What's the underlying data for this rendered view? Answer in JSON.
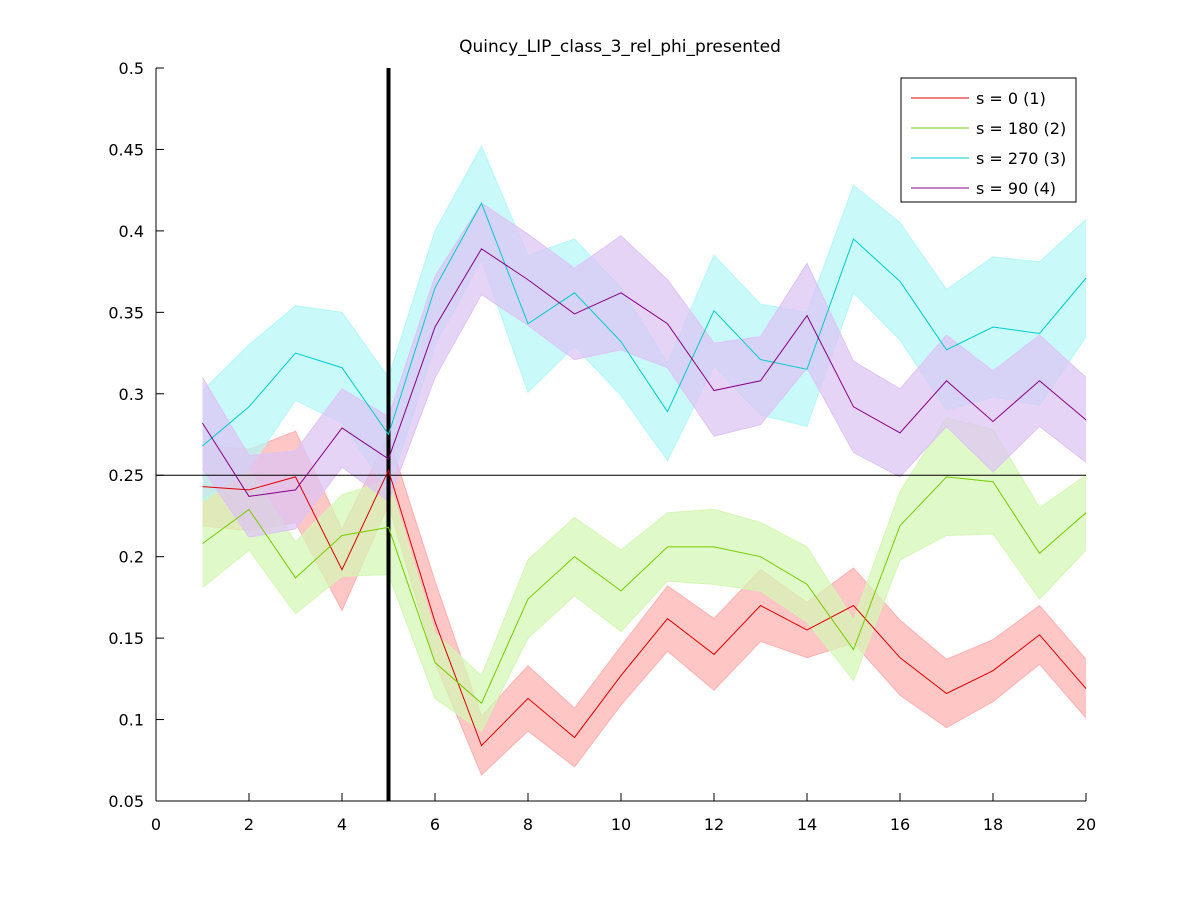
{
  "chart_data": {
    "type": "line",
    "title": "Quincy_LIP_class_3_rel_phi_presented",
    "xlabel": "",
    "ylabel": "",
    "xlim": [
      0,
      20
    ],
    "ylim": [
      0.05,
      0.5
    ],
    "xticks": [
      0,
      2,
      4,
      6,
      8,
      10,
      12,
      14,
      16,
      18,
      20
    ],
    "yticks": [
      0.05,
      0.1,
      0.15,
      0.2,
      0.25,
      0.3,
      0.35,
      0.4,
      0.45,
      0.5
    ],
    "grid": false,
    "legend_position": "top-right",
    "reference_lines": {
      "vertical_x": 5,
      "horizontal_y": 0.25
    },
    "x": [
      1,
      2,
      3,
      4,
      5,
      6,
      7,
      8,
      9,
      10,
      11,
      12,
      13,
      14,
      15,
      16,
      17,
      18,
      19,
      20
    ],
    "series": [
      {
        "name": "s = 0 (1)",
        "color": "#dd0000",
        "band_color": "#ffb0b0",
        "values": [
          0.243,
          0.241,
          0.249,
          0.192,
          0.253,
          0.16,
          0.084,
          0.113,
          0.089,
          0.127,
          0.162,
          0.14,
          0.17,
          0.155,
          0.17,
          0.138,
          0.116,
          0.13,
          0.152,
          0.119
        ],
        "upper": [
          0.268,
          0.266,
          0.277,
          0.217,
          0.274,
          0.185,
          0.102,
          0.133,
          0.107,
          0.145,
          0.182,
          0.162,
          0.192,
          0.172,
          0.193,
          0.161,
          0.137,
          0.149,
          0.17,
          0.137
        ],
        "lower": [
          0.219,
          0.216,
          0.221,
          0.167,
          0.232,
          0.135,
          0.066,
          0.093,
          0.071,
          0.109,
          0.142,
          0.118,
          0.148,
          0.138,
          0.147,
          0.115,
          0.095,
          0.111,
          0.134,
          0.101
        ]
      },
      {
        "name": "s = 180 (2)",
        "color": "#77cc00",
        "band_color": "#d4f7b4",
        "values": [
          0.208,
          0.229,
          0.187,
          0.213,
          0.218,
          0.135,
          0.11,
          0.174,
          0.2,
          0.179,
          0.206,
          0.206,
          0.2,
          0.183,
          0.143,
          0.219,
          0.249,
          0.246,
          0.202,
          0.227
        ],
        "upper": [
          0.235,
          0.254,
          0.209,
          0.238,
          0.247,
          0.153,
          0.127,
          0.198,
          0.224,
          0.204,
          0.227,
          0.229,
          0.221,
          0.206,
          0.161,
          0.24,
          0.285,
          0.278,
          0.23,
          0.25
        ],
        "lower": [
          0.181,
          0.204,
          0.165,
          0.188,
          0.189,
          0.113,
          0.093,
          0.15,
          0.176,
          0.154,
          0.185,
          0.183,
          0.179,
          0.16,
          0.124,
          0.198,
          0.213,
          0.214,
          0.174,
          0.204
        ]
      },
      {
        "name": "s = 270 (3)",
        "color": "#00cccc",
        "band_color": "#b4f7f7",
        "values": [
          0.268,
          0.292,
          0.325,
          0.316,
          0.275,
          0.365,
          0.417,
          0.343,
          0.362,
          0.332,
          0.289,
          0.351,
          0.321,
          0.315,
          0.395,
          0.369,
          0.327,
          0.341,
          0.337,
          0.371
        ],
        "upper": [
          0.302,
          0.33,
          0.354,
          0.35,
          0.31,
          0.4,
          0.452,
          0.385,
          0.395,
          0.365,
          0.319,
          0.385,
          0.355,
          0.35,
          0.428,
          0.405,
          0.364,
          0.384,
          0.381,
          0.407
        ],
        "lower": [
          0.234,
          0.254,
          0.296,
          0.282,
          0.24,
          0.33,
          0.382,
          0.301,
          0.329,
          0.299,
          0.259,
          0.317,
          0.287,
          0.28,
          0.362,
          0.333,
          0.29,
          0.298,
          0.293,
          0.335
        ]
      },
      {
        "name": "s = 90 (4)",
        "color": "#880088",
        "band_color": "#dcc4f4",
        "values": [
          0.282,
          0.237,
          0.241,
          0.279,
          0.26,
          0.341,
          0.389,
          0.37,
          0.349,
          0.362,
          0.343,
          0.302,
          0.308,
          0.348,
          0.292,
          0.276,
          0.308,
          0.283,
          0.308,
          0.284
        ],
        "upper": [
          0.31,
          0.262,
          0.265,
          0.303,
          0.286,
          0.372,
          0.417,
          0.398,
          0.377,
          0.397,
          0.37,
          0.331,
          0.335,
          0.38,
          0.32,
          0.303,
          0.336,
          0.314,
          0.336,
          0.31
        ],
        "lower": [
          0.254,
          0.212,
          0.217,
          0.255,
          0.234,
          0.31,
          0.361,
          0.342,
          0.321,
          0.327,
          0.316,
          0.274,
          0.281,
          0.316,
          0.264,
          0.249,
          0.28,
          0.252,
          0.28,
          0.258
        ]
      }
    ]
  }
}
